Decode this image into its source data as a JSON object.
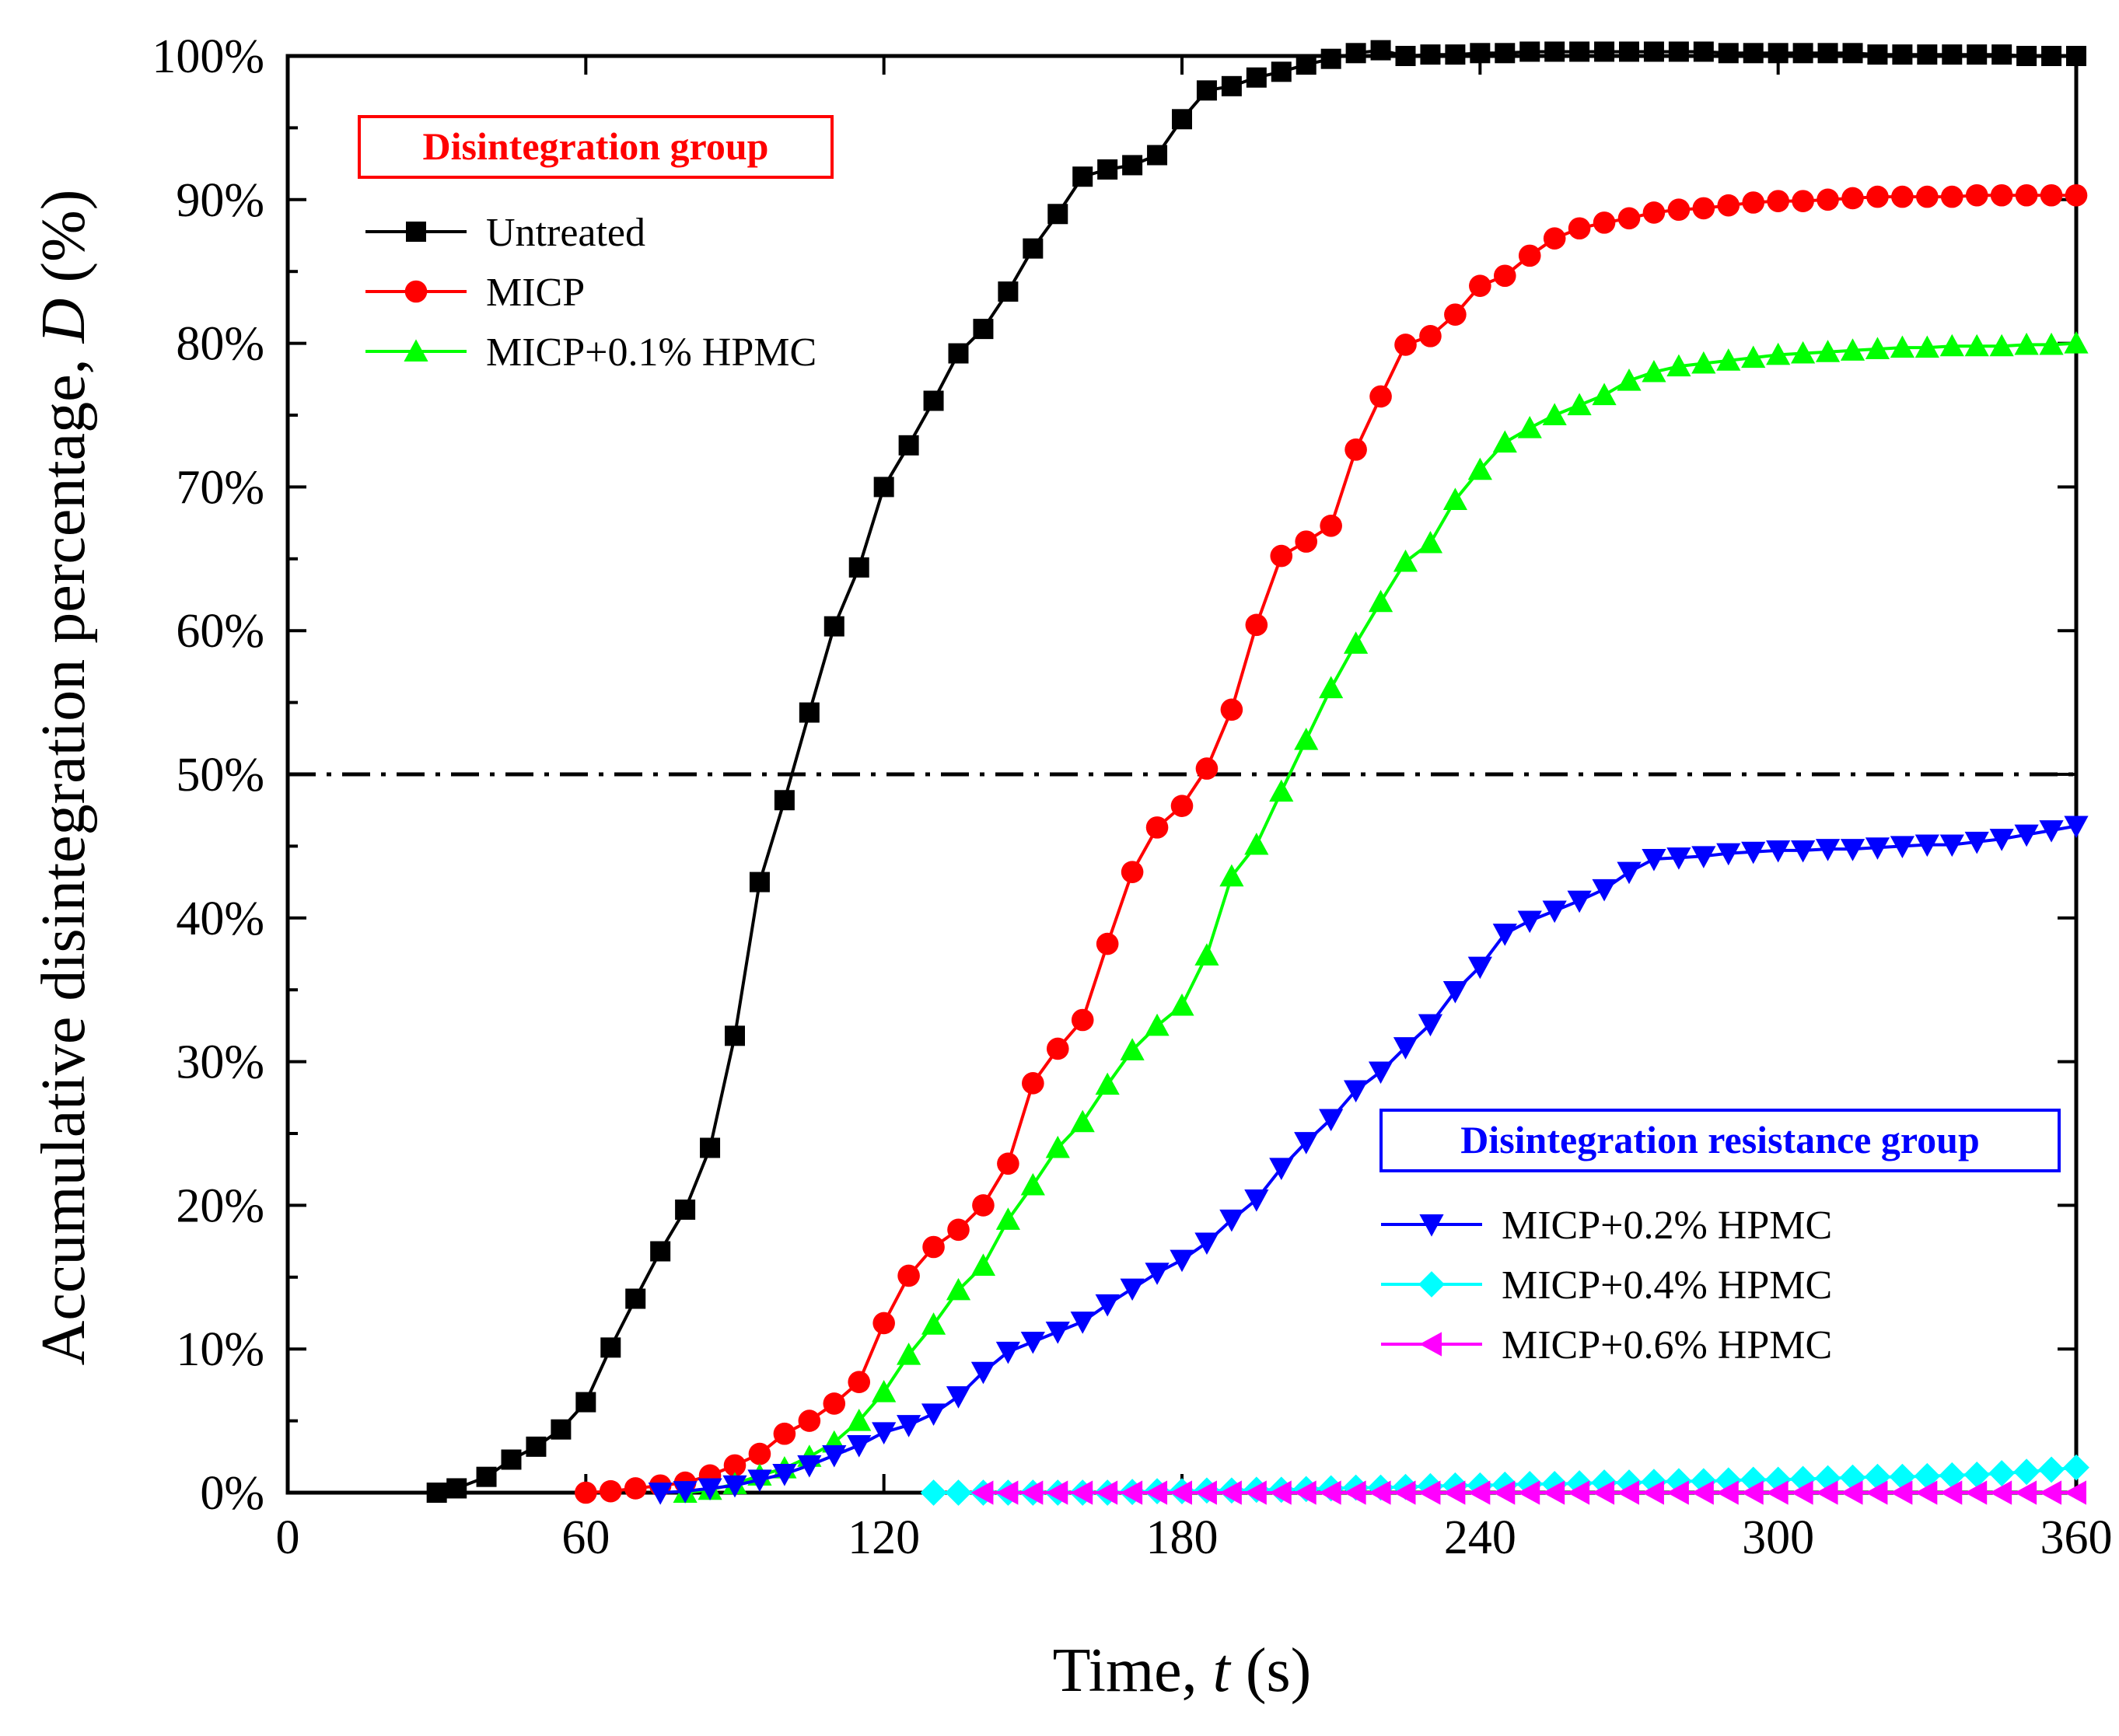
{
  "chart_data": {
    "type": "line",
    "xlabel": "Time, t (s)",
    "xlabel_parts": [
      "Time, ",
      "t",
      " (s)"
    ],
    "ylabel": "Accumulative disintegration percentage, D (%)",
    "ylabel_parts": [
      "Accumulative disintegration percentage, ",
      "D",
      " (%)"
    ],
    "xlim": [
      0,
      360
    ],
    "ylim": [
      0,
      100
    ],
    "x_ticks": [
      0,
      60,
      120,
      180,
      240,
      300,
      360
    ],
    "y_ticks": [
      0,
      10,
      20,
      30,
      40,
      50,
      60,
      70,
      80,
      90,
      100
    ],
    "x_tick_labels": [
      "0",
      "60",
      "120",
      "180",
      "240",
      "300",
      "360"
    ],
    "y_tick_labels": [
      "0%",
      "10%",
      "20%",
      "30%",
      "40%",
      "50%",
      "60%",
      "70%",
      "80%",
      "90%",
      "100%"
    ],
    "reference_line": {
      "y": 50,
      "style": "dash-dot",
      "color": "#000000"
    },
    "grid": false,
    "legend_groups": [
      {
        "title": "Disintegration group",
        "title_color": "#ff0000",
        "placement": "top-left",
        "series": [
          0,
          1,
          2
        ]
      },
      {
        "title": "Disintegration resistance group",
        "title_color": "#0000ff",
        "placement": "bottom-right",
        "series": [
          3,
          4,
          5
        ]
      }
    ],
    "series": [
      {
        "name": "Untreated",
        "color": "#000000",
        "marker": "square",
        "x": [
          30,
          34,
          40,
          45,
          50,
          55,
          60,
          65,
          70,
          75,
          80,
          85,
          90,
          95,
          100,
          105,
          110,
          115,
          120,
          125,
          130,
          135,
          140,
          145,
          150,
          155,
          160,
          165,
          170,
          175,
          180,
          185,
          190,
          195,
          200,
          205,
          210,
          215,
          220,
          225,
          230,
          235,
          240,
          245,
          250,
          255,
          260,
          265,
          270,
          275,
          280,
          285,
          290,
          295,
          300,
          305,
          310,
          315,
          320,
          325,
          330,
          335,
          340,
          345,
          350,
          355,
          360
        ],
        "y": [
          0,
          0.3,
          1.1,
          2.3,
          3.2,
          4.4,
          6.3,
          10.1,
          13.5,
          16.8,
          19.7,
          24.0,
          31.8,
          42.5,
          48.2,
          54.3,
          60.3,
          64.4,
          70.0,
          72.9,
          76.0,
          79.3,
          81.0,
          83.6,
          86.6,
          89.0,
          91.6,
          92.1,
          92.4,
          93.1,
          95.6,
          97.6,
          97.9,
          98.5,
          98.9,
          99.4,
          99.8,
          100.2,
          100.4,
          100.0,
          100.1,
          100.1,
          100.2,
          100.2,
          100.3,
          100.3,
          100.3,
          100.3,
          100.3,
          100.3,
          100.3,
          100.3,
          100.2,
          100.2,
          100.2,
          100.2,
          100.2,
          100.2,
          100.1,
          100.1,
          100.1,
          100.1,
          100.1,
          100.1,
          100.0,
          100.0,
          100.0
        ]
      },
      {
        "name": "MICP",
        "color": "#ff0000",
        "marker": "circle",
        "x": [
          60,
          65,
          70,
          75,
          80,
          85,
          90,
          95,
          100,
          105,
          110,
          115,
          120,
          125,
          130,
          135,
          140,
          145,
          150,
          155,
          160,
          165,
          170,
          175,
          180,
          185,
          190,
          195,
          200,
          205,
          210,
          215,
          220,
          225,
          230,
          235,
          240,
          245,
          250,
          255,
          260,
          265,
          270,
          275,
          280,
          285,
          290,
          295,
          300,
          305,
          310,
          315,
          320,
          325,
          330,
          335,
          340,
          345,
          350,
          355,
          360
        ],
        "y": [
          0,
          0.1,
          0.3,
          0.5,
          0.7,
          1.2,
          1.9,
          2.7,
          4.1,
          5.0,
          6.2,
          7.7,
          11.8,
          15.1,
          17.1,
          18.3,
          20.0,
          22.9,
          28.5,
          30.9,
          32.9,
          38.2,
          43.2,
          46.3,
          47.8,
          50.4,
          54.5,
          60.4,
          65.2,
          66.2,
          67.3,
          72.6,
          76.3,
          79.9,
          80.5,
          82.0,
          84.0,
          84.7,
          86.1,
          87.3,
          88.0,
          88.4,
          88.7,
          89.1,
          89.3,
          89.4,
          89.6,
          89.8,
          89.9,
          89.9,
          90.0,
          90.1,
          90.2,
          90.2,
          90.2,
          90.2,
          90.3,
          90.3,
          90.3,
          90.3,
          90.3
        ]
      },
      {
        "name": "MICP+0.1% HPMC",
        "color": "#00ff00",
        "marker": "triangle-up",
        "x": [
          80,
          85,
          90,
          95,
          100,
          105,
          110,
          115,
          120,
          125,
          130,
          135,
          140,
          145,
          150,
          155,
          160,
          165,
          170,
          175,
          180,
          185,
          190,
          195,
          200,
          205,
          210,
          215,
          220,
          225,
          230,
          235,
          240,
          245,
          250,
          255,
          260,
          265,
          270,
          275,
          280,
          285,
          290,
          295,
          300,
          305,
          310,
          315,
          320,
          325,
          330,
          335,
          340,
          345,
          350,
          355,
          360
        ],
        "y": [
          0,
          0.2,
          0.6,
          1.2,
          1.7,
          2.5,
          3.5,
          5.0,
          7.0,
          9.6,
          11.7,
          14.1,
          15.8,
          19.0,
          21.4,
          24.0,
          25.8,
          28.4,
          30.8,
          32.5,
          33.9,
          37.4,
          42.9,
          45.1,
          48.8,
          52.4,
          56.0,
          59.1,
          62.0,
          64.8,
          66.1,
          69.1,
          71.2,
          73.1,
          74.1,
          75.0,
          75.7,
          76.4,
          77.4,
          78.0,
          78.4,
          78.6,
          78.8,
          79.0,
          79.2,
          79.3,
          79.4,
          79.5,
          79.6,
          79.7,
          79.7,
          79.8,
          79.8,
          79.8,
          79.9,
          79.9,
          80.0
        ]
      },
      {
        "name": "MICP+0.2% HPMC",
        "color": "#0000ff",
        "marker": "triangle-down",
        "x": [
          75,
          80,
          85,
          90,
          95,
          100,
          105,
          110,
          115,
          120,
          125,
          130,
          135,
          140,
          145,
          150,
          155,
          160,
          165,
          170,
          175,
          180,
          185,
          190,
          195,
          200,
          205,
          210,
          215,
          220,
          225,
          230,
          235,
          240,
          245,
          250,
          255,
          260,
          265,
          270,
          275,
          280,
          285,
          290,
          295,
          300,
          305,
          310,
          315,
          320,
          325,
          330,
          335,
          340,
          345,
          350,
          355,
          360
        ],
        "y": [
          0,
          0.1,
          0.3,
          0.5,
          0.9,
          1.3,
          1.9,
          2.6,
          3.3,
          4.2,
          4.7,
          5.5,
          6.7,
          8.4,
          9.8,
          10.5,
          11.2,
          11.9,
          13.1,
          14.2,
          15.3,
          16.2,
          17.4,
          19.0,
          20.4,
          22.6,
          24.4,
          26.0,
          28.0,
          29.3,
          31.0,
          32.6,
          34.9,
          36.6,
          38.9,
          39.8,
          40.5,
          41.2,
          42.0,
          43.2,
          44.1,
          44.2,
          44.3,
          44.5,
          44.6,
          44.7,
          44.7,
          44.8,
          44.8,
          44.9,
          45.0,
          45.1,
          45.1,
          45.3,
          45.5,
          45.8,
          46.1,
          46.4
        ]
      },
      {
        "name": "MICP+0.4% HPMC",
        "color": "#00ffff",
        "marker": "diamond",
        "x": [
          130,
          135,
          140,
          145,
          150,
          155,
          160,
          165,
          170,
          175,
          180,
          185,
          190,
          195,
          200,
          205,
          210,
          215,
          220,
          225,
          230,
          235,
          240,
          245,
          250,
          255,
          260,
          265,
          270,
          275,
          280,
          285,
          290,
          295,
          300,
          305,
          310,
          315,
          320,
          325,
          330,
          335,
          340,
          345,
          350,
          355,
          360
        ],
        "y": [
          0,
          0,
          0,
          0,
          0,
          0,
          0,
          0,
          0.05,
          0.1,
          0.1,
          0.15,
          0.15,
          0.2,
          0.2,
          0.25,
          0.3,
          0.35,
          0.35,
          0.4,
          0.45,
          0.5,
          0.5,
          0.55,
          0.6,
          0.6,
          0.65,
          0.7,
          0.7,
          0.75,
          0.8,
          0.8,
          0.85,
          0.9,
          0.9,
          0.95,
          1.0,
          1.05,
          1.1,
          1.1,
          1.15,
          1.2,
          1.25,
          1.35,
          1.45,
          1.6,
          1.75
        ]
      },
      {
        "name": "MICP+0.6% HPMC",
        "color": "#ff00ff",
        "marker": "triangle-left",
        "x": [
          140,
          145,
          150,
          155,
          160,
          165,
          170,
          175,
          180,
          185,
          190,
          195,
          200,
          205,
          210,
          215,
          220,
          225,
          230,
          235,
          240,
          245,
          250,
          255,
          260,
          265,
          270,
          275,
          280,
          285,
          290,
          295,
          300,
          305,
          310,
          315,
          320,
          325,
          330,
          335,
          340,
          345,
          350,
          355,
          360
        ],
        "y": [
          0,
          0,
          0,
          0,
          0,
          0,
          0,
          0,
          0,
          0,
          0,
          0,
          0,
          0,
          0,
          0,
          0,
          0,
          0,
          0,
          0,
          0,
          0,
          0,
          0,
          0,
          0,
          0,
          0,
          0,
          0,
          0,
          0,
          0,
          0,
          0,
          0,
          0,
          0,
          0,
          0,
          0,
          0,
          0,
          0
        ]
      }
    ]
  }
}
